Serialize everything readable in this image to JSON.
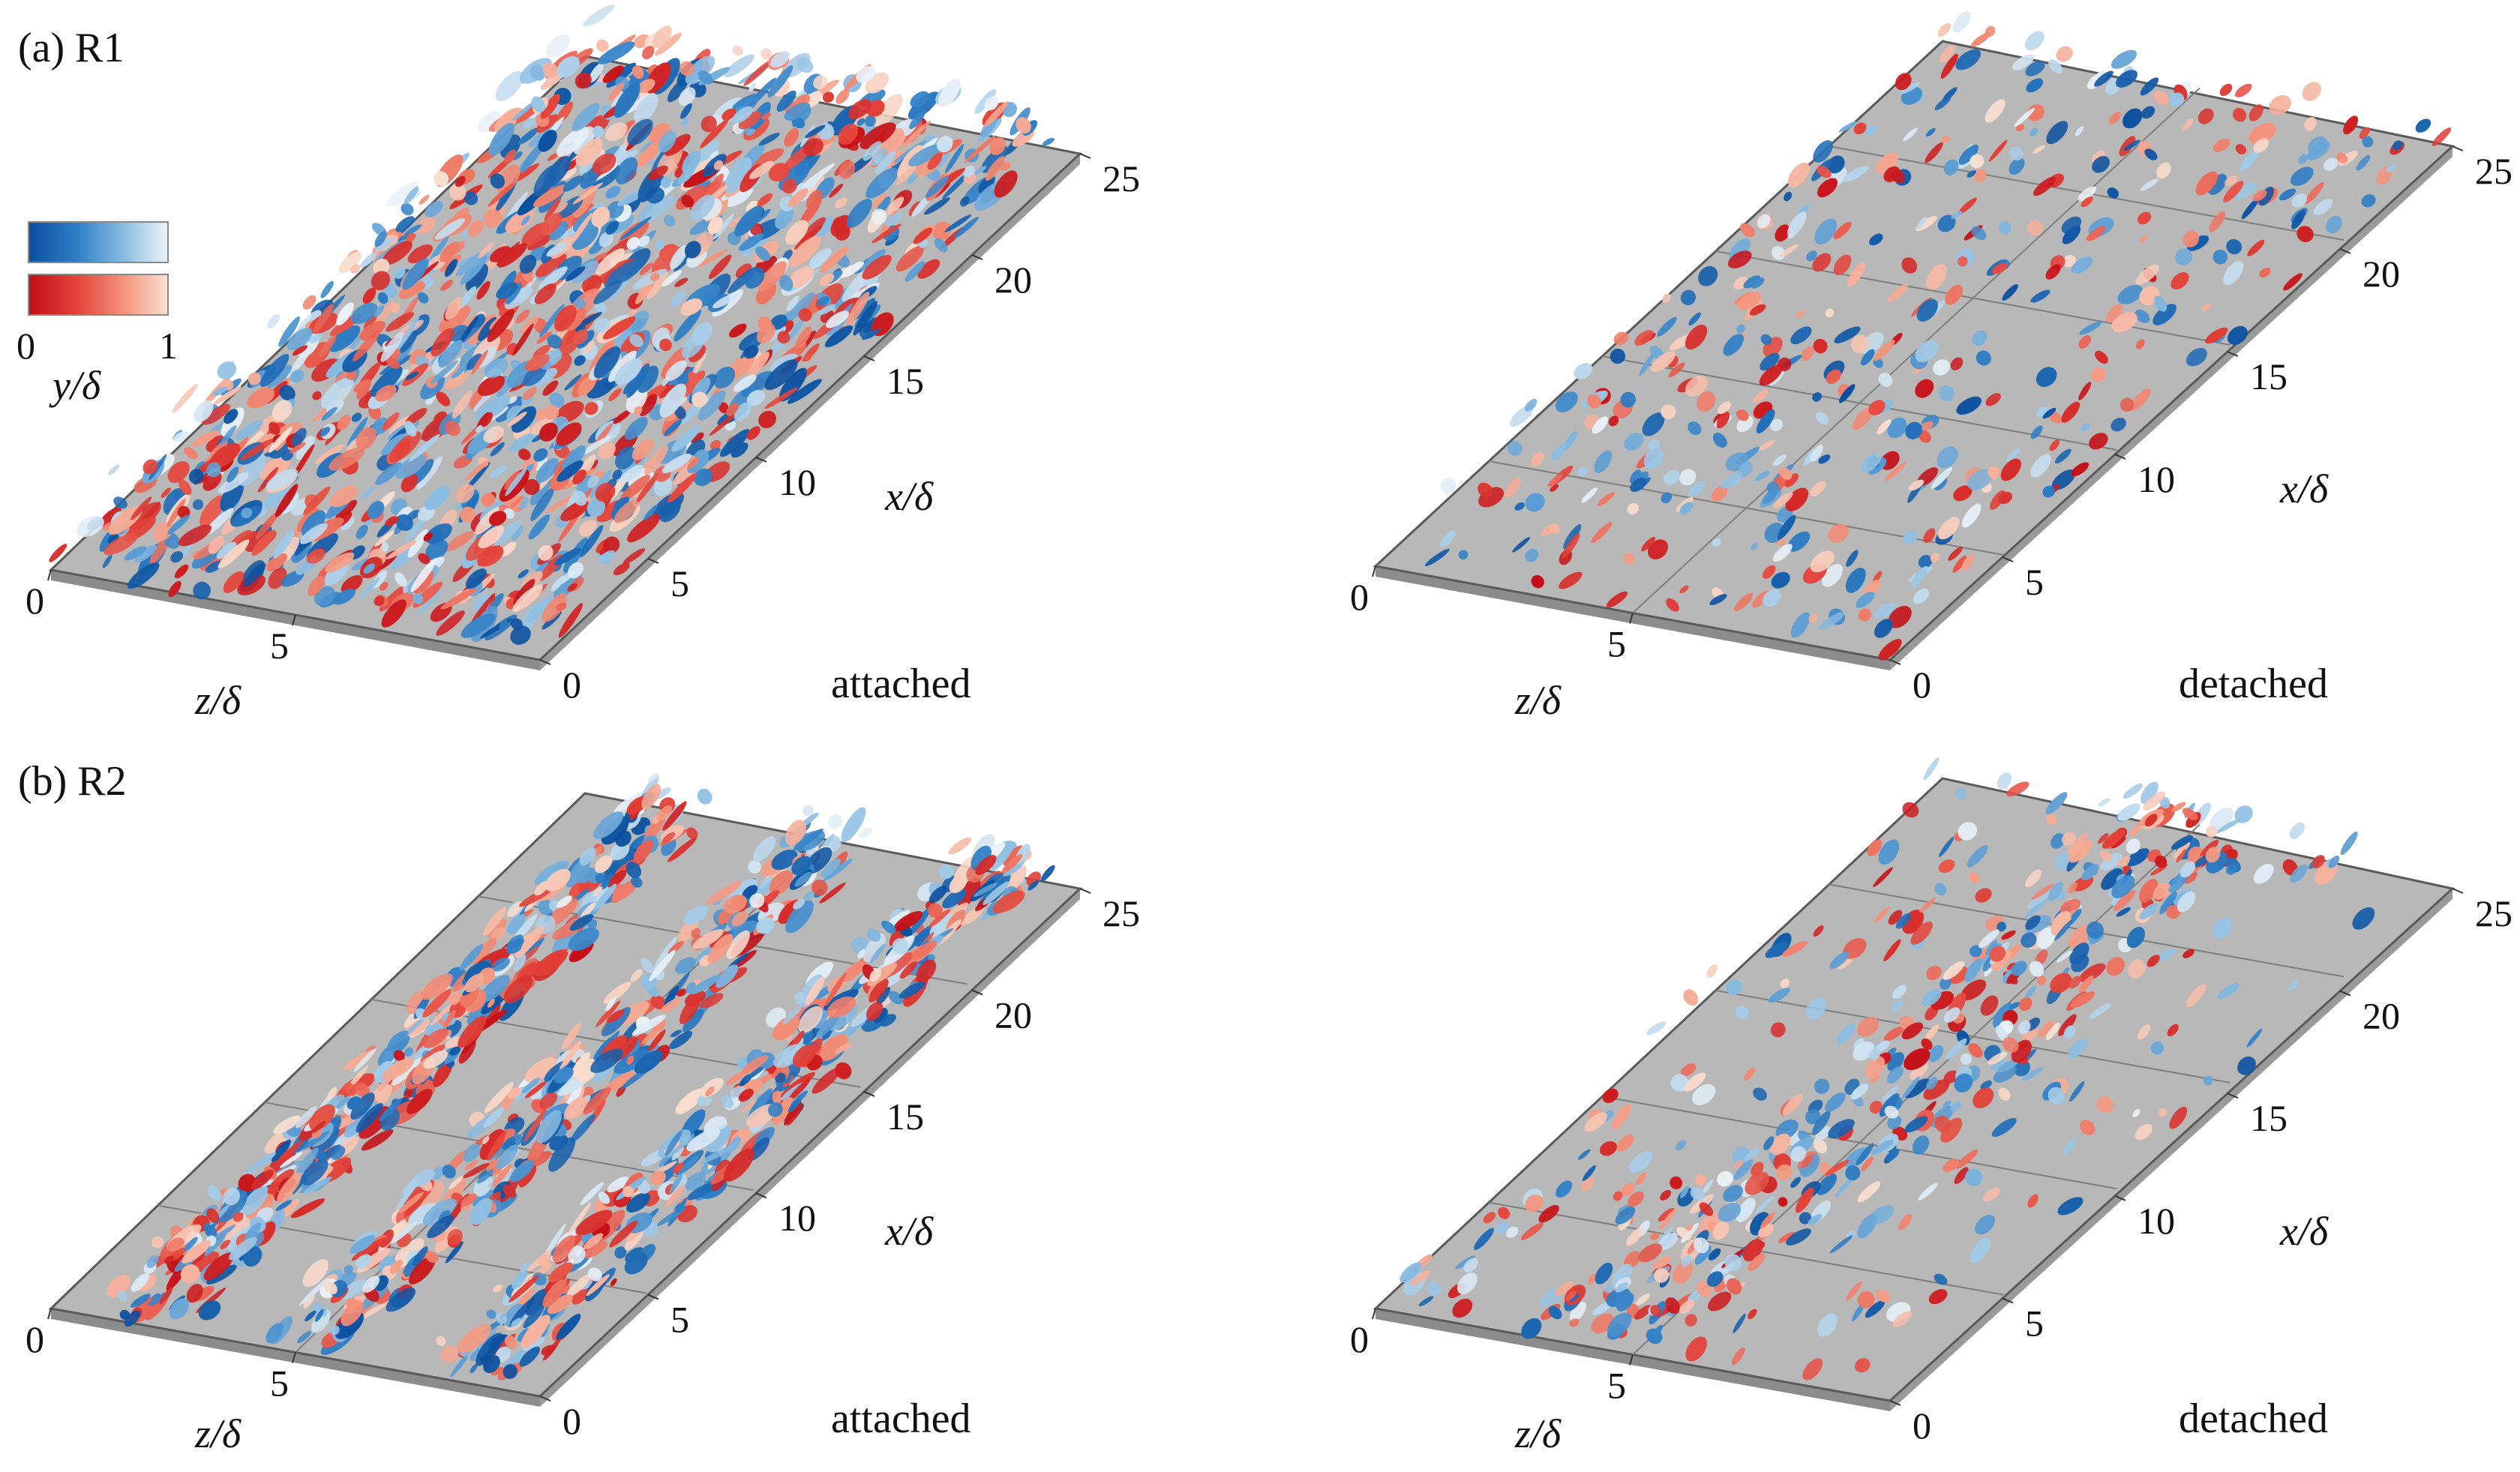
{
  "figure": {
    "colorbar": {
      "label": "y/δ",
      "min_label": "0",
      "max_label": "1",
      "blue_ramp": [
        "#0a4f9e",
        "#2f7fc6",
        "#8fbfe2",
        "#edf3f8"
      ],
      "red_ramp": [
        "#c40d15",
        "#e4443a",
        "#f4977f",
        "#f9e1d3"
      ]
    },
    "colors": {
      "floor": "#b8b8b8",
      "floor_edge": "#5a5a5a",
      "grid": "#7e7e7e"
    },
    "panels": [
      {
        "row_label": "(a) R1",
        "state": "attached",
        "x_label": "x/δ",
        "z_label": "z/δ",
        "x_ticks": [
          "0",
          "5",
          "10",
          "15",
          "20",
          "25"
        ],
        "z_ticks": [
          "0",
          "5"
        ],
        "show_grid": false
      },
      {
        "row_label": "",
        "state": "detached",
        "x_label": "x/δ",
        "z_label": "z/δ",
        "x_ticks": [
          "0",
          "5",
          "10",
          "15",
          "20",
          "25"
        ],
        "z_ticks": [
          "0",
          "5"
        ],
        "show_grid": true
      },
      {
        "row_label": "(b) R2",
        "state": "attached",
        "x_label": "x/δ",
        "z_label": "z/δ",
        "x_ticks": [
          "0",
          "5",
          "10",
          "15",
          "20",
          "25"
        ],
        "z_ticks": [
          "0",
          "5"
        ],
        "show_grid": true
      },
      {
        "row_label": "",
        "state": "detached",
        "x_label": "x/δ",
        "z_label": "z/δ",
        "x_ticks": [
          "0",
          "5",
          "10",
          "15",
          "20",
          "25"
        ],
        "z_ticks": [
          "0",
          "5"
        ],
        "show_grid": true
      }
    ]
  }
}
